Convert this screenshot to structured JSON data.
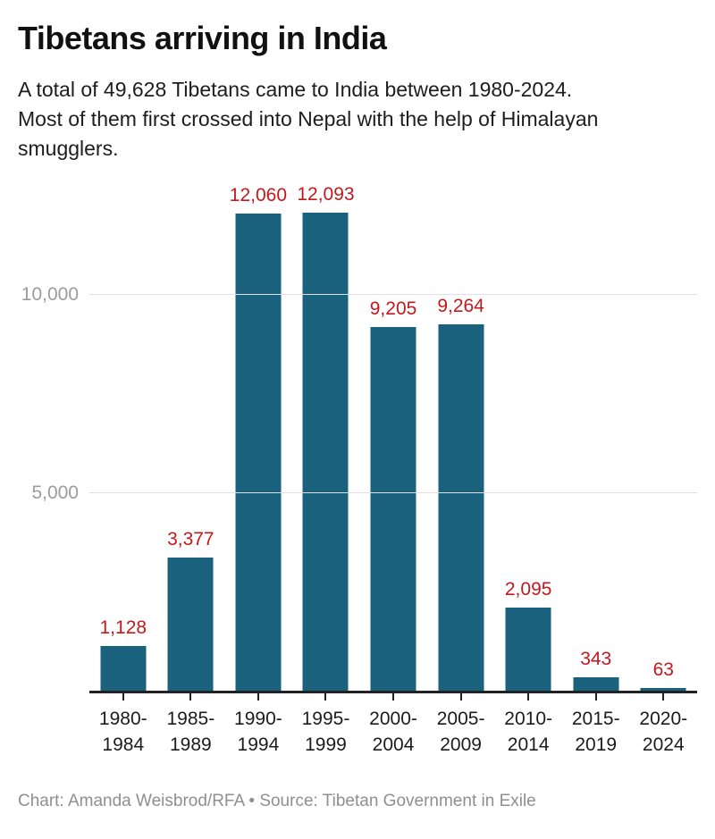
{
  "chart_data": {
    "type": "bar",
    "title": "Tibetans arriving in India",
    "subtitle_lines": [
      "A total of 49,628 Tibetans came to India between 1980-2024.",
      "Most of them first crossed into Nepal with the help of Himalayan",
      "smugglers."
    ],
    "categories": [
      "1980-\n1984",
      "1985-\n1989",
      "1990-\n1994",
      "1995-\n1999",
      "2000-\n2004",
      "2005-\n2009",
      "2010-\n2014",
      "2015-\n2019",
      "2020-\n2024"
    ],
    "values": [
      1128,
      3377,
      12060,
      12093,
      9205,
      9264,
      2095,
      343,
      63
    ],
    "value_labels": [
      "1,128",
      "3,377",
      "12,060",
      "12,093",
      "9,205",
      "9,264",
      "2,095",
      "343",
      "63"
    ],
    "y_ticks": [
      {
        "value": 5000,
        "label": "5,000"
      },
      {
        "value": 10000,
        "label": "10,000"
      }
    ],
    "ylim": [
      0,
      12700
    ],
    "grid": "horizontal",
    "legend": "none",
    "xlabel": "",
    "ylabel": "",
    "colors": {
      "bar": "#19617C",
      "value_label": "#C4191C",
      "gridline": "#E0E0E0",
      "axis": "#222222",
      "y_tick_label": "#9C9C9C",
      "x_tick_label": "#1C1C1C"
    }
  },
  "footer": {
    "credit": "Chart: Amanda Weisbrod/RFA • Source: Tibetan Government in Exile"
  }
}
